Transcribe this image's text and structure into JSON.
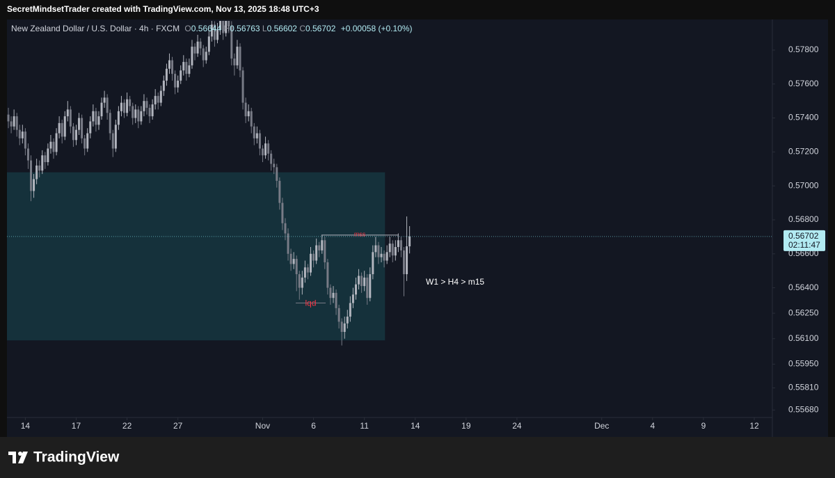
{
  "header": "SecretMindsetTrader created with TradingView.com, Nov 13, 2025 18:48 UTC+3",
  "footer": {
    "brand": "TradingView"
  },
  "chart_data": {
    "type": "candlestick",
    "symbol": "New Zealand Dollar / U.S. Dollar · 4h · FXCM",
    "ohlc_labels": [
      "O",
      "H",
      "L",
      "C"
    ],
    "change": "+0.00058 (+0.10%)",
    "countdown": "02:11:47",
    "colors": {
      "up": "#b2b5be",
      "down": "#787b86"
    },
    "candles": [
      [
        0.5742,
        0.5746,
        0.5734,
        0.5738
      ],
      [
        0.5738,
        0.5741,
        0.5731,
        0.5735
      ],
      [
        0.5735,
        0.5745,
        0.5733,
        0.5741
      ],
      [
        0.5741,
        0.5743,
        0.5729,
        0.5733
      ],
      [
        0.5733,
        0.5736,
        0.5724,
        0.5728
      ],
      [
        0.5728,
        0.5736,
        0.5725,
        0.5732
      ],
      [
        0.5732,
        0.5734,
        0.5718,
        0.5722
      ],
      [
        0.5722,
        0.5725,
        0.571,
        0.5715
      ],
      [
        0.5715,
        0.5718,
        0.5691,
        0.5697
      ],
      [
        0.5697,
        0.5707,
        0.5693,
        0.5704
      ],
      [
        0.5704,
        0.5716,
        0.5701,
        0.5712
      ],
      [
        0.5712,
        0.5715,
        0.5705,
        0.5709
      ],
      [
        0.5709,
        0.5721,
        0.5707,
        0.5718
      ],
      [
        0.5718,
        0.572,
        0.571,
        0.5714
      ],
      [
        0.5714,
        0.5725,
        0.5712,
        0.5722
      ],
      [
        0.5722,
        0.573,
        0.5719,
        0.5726
      ],
      [
        0.5726,
        0.5728,
        0.5716,
        0.572
      ],
      [
        0.572,
        0.5734,
        0.5718,
        0.5731
      ],
      [
        0.5731,
        0.5741,
        0.5728,
        0.5737
      ],
      [
        0.5737,
        0.5739,
        0.5725,
        0.5729
      ],
      [
        0.5729,
        0.5744,
        0.5727,
        0.5741
      ],
      [
        0.5741,
        0.575,
        0.5738,
        0.5745
      ],
      [
        0.5745,
        0.5747,
        0.5731,
        0.5735
      ],
      [
        0.5735,
        0.5737,
        0.5723,
        0.5727
      ],
      [
        0.5727,
        0.5736,
        0.5724,
        0.5733
      ],
      [
        0.5733,
        0.5743,
        0.573,
        0.574
      ],
      [
        0.574,
        0.5742,
        0.5725,
        0.5728
      ],
      [
        0.5728,
        0.573,
        0.5718,
        0.5722
      ],
      [
        0.5722,
        0.5734,
        0.572,
        0.5731
      ],
      [
        0.5731,
        0.5741,
        0.5728,
        0.5738
      ],
      [
        0.5738,
        0.5748,
        0.5735,
        0.5744
      ],
      [
        0.5744,
        0.5746,
        0.5732,
        0.5736
      ],
      [
        0.5736,
        0.5744,
        0.5733,
        0.5741
      ],
      [
        0.5741,
        0.5752,
        0.5739,
        0.5749
      ],
      [
        0.5749,
        0.5756,
        0.5746,
        0.5752
      ],
      [
        0.5752,
        0.5754,
        0.5739,
        0.5743
      ],
      [
        0.5743,
        0.5745,
        0.5727,
        0.5731
      ],
      [
        0.5731,
        0.5733,
        0.5717,
        0.5722
      ],
      [
        0.5722,
        0.5739,
        0.572,
        0.5736
      ],
      [
        0.5736,
        0.5747,
        0.5733,
        0.5744
      ],
      [
        0.5744,
        0.5753,
        0.5741,
        0.5749
      ],
      [
        0.5749,
        0.5751,
        0.574,
        0.5743
      ],
      [
        0.5743,
        0.5755,
        0.5741,
        0.5751
      ],
      [
        0.5751,
        0.5753,
        0.5744,
        0.5747
      ],
      [
        0.5747,
        0.5749,
        0.5736,
        0.574
      ],
      [
        0.574,
        0.5748,
        0.5737,
        0.5745
      ],
      [
        0.5745,
        0.5747,
        0.5734,
        0.5738
      ],
      [
        0.5738,
        0.5747,
        0.5736,
        0.5744
      ],
      [
        0.5744,
        0.5754,
        0.5741,
        0.575
      ],
      [
        0.575,
        0.5752,
        0.5742,
        0.5746
      ],
      [
        0.5746,
        0.5748,
        0.5737,
        0.5741
      ],
      [
        0.5741,
        0.5751,
        0.5739,
        0.5748
      ],
      [
        0.5748,
        0.5757,
        0.5745,
        0.5753
      ],
      [
        0.5753,
        0.5755,
        0.5745,
        0.5749
      ],
      [
        0.5749,
        0.5759,
        0.5747,
        0.5756
      ],
      [
        0.5756,
        0.5765,
        0.5753,
        0.5762
      ],
      [
        0.5762,
        0.5772,
        0.5759,
        0.5769
      ],
      [
        0.5769,
        0.5778,
        0.5766,
        0.5774
      ],
      [
        0.5774,
        0.5776,
        0.5762,
        0.5766
      ],
      [
        0.5766,
        0.5768,
        0.5754,
        0.5758
      ],
      [
        0.5758,
        0.5765,
        0.5755,
        0.5762
      ],
      [
        0.5762,
        0.5771,
        0.576,
        0.5768
      ],
      [
        0.5768,
        0.5777,
        0.5765,
        0.5773
      ],
      [
        0.5773,
        0.5775,
        0.5762,
        0.5766
      ],
      [
        0.5766,
        0.5775,
        0.5764,
        0.5771
      ],
      [
        0.5771,
        0.5786,
        0.5769,
        0.5782
      ],
      [
        0.5782,
        0.5784,
        0.5774,
        0.5778
      ],
      [
        0.5778,
        0.5789,
        0.5776,
        0.5785
      ],
      [
        0.5785,
        0.5787,
        0.5777,
        0.5781
      ],
      [
        0.5781,
        0.5783,
        0.577,
        0.5774
      ],
      [
        0.5774,
        0.5782,
        0.5772,
        0.5779
      ],
      [
        0.5779,
        0.5792,
        0.5777,
        0.5788
      ],
      [
        0.5788,
        0.5799,
        0.5785,
        0.5795
      ],
      [
        0.5795,
        0.5797,
        0.5782,
        0.5786
      ],
      [
        0.5786,
        0.5796,
        0.5784,
        0.5792
      ],
      [
        0.5792,
        0.5803,
        0.5789,
        0.5798
      ],
      [
        0.5798,
        0.58,
        0.5786,
        0.579
      ],
      [
        0.579,
        0.581,
        0.5788,
        0.5802
      ],
      [
        0.5802,
        0.5805,
        0.579,
        0.5794
      ],
      [
        0.5794,
        0.5797,
        0.5771,
        0.5775
      ],
      [
        0.5775,
        0.5778,
        0.5765,
        0.5771
      ],
      [
        0.5771,
        0.5786,
        0.5769,
        0.5782
      ],
      [
        0.5782,
        0.5784,
        0.5764,
        0.5768
      ],
      [
        0.5768,
        0.577,
        0.5745,
        0.5749
      ],
      [
        0.5749,
        0.5752,
        0.5737,
        0.5741
      ],
      [
        0.5741,
        0.5748,
        0.5738,
        0.5744
      ],
      [
        0.5744,
        0.5746,
        0.5731,
        0.5735
      ],
      [
        0.5735,
        0.5737,
        0.5724,
        0.5728
      ],
      [
        0.5728,
        0.5735,
        0.5725,
        0.5731
      ],
      [
        0.5731,
        0.5733,
        0.5718,
        0.5722
      ],
      [
        0.5722,
        0.5724,
        0.5714,
        0.5718
      ],
      [
        0.5718,
        0.5729,
        0.5716,
        0.5725
      ],
      [
        0.5725,
        0.5727,
        0.5715,
        0.5719
      ],
      [
        0.5719,
        0.5721,
        0.5709,
        0.5713
      ],
      [
        0.5713,
        0.5716,
        0.5707,
        0.5711
      ],
      [
        0.5711,
        0.5713,
        0.5699,
        0.5703
      ],
      [
        0.5703,
        0.5705,
        0.5686,
        0.569
      ],
      [
        0.569,
        0.5693,
        0.5674,
        0.5678
      ],
      [
        0.5678,
        0.5681,
        0.5668,
        0.5672
      ],
      [
        0.5672,
        0.5675,
        0.5656,
        0.566
      ],
      [
        0.566,
        0.5663,
        0.565,
        0.5654
      ],
      [
        0.5654,
        0.5661,
        0.5651,
        0.5657
      ],
      [
        0.5657,
        0.5659,
        0.5638,
        0.5648
      ],
      [
        0.5648,
        0.565,
        0.5633,
        0.564
      ],
      [
        0.564,
        0.565,
        0.5636,
        0.5646
      ],
      [
        0.5646,
        0.5656,
        0.5643,
        0.5652
      ],
      [
        0.5652,
        0.5654,
        0.5645,
        0.5649
      ],
      [
        0.5649,
        0.5664,
        0.5647,
        0.566
      ],
      [
        0.566,
        0.5662,
        0.5652,
        0.5656
      ],
      [
        0.5656,
        0.5669,
        0.5654,
        0.5665
      ],
      [
        0.5665,
        0.5667,
        0.5658,
        0.5662
      ],
      [
        0.5662,
        0.5671,
        0.566,
        0.5668
      ],
      [
        0.5668,
        0.567,
        0.5651,
        0.5655
      ],
      [
        0.5655,
        0.5657,
        0.5636,
        0.564
      ],
      [
        0.564,
        0.5642,
        0.563,
        0.5634
      ],
      [
        0.5634,
        0.5641,
        0.5631,
        0.5637
      ],
      [
        0.5637,
        0.5639,
        0.5624,
        0.5628
      ],
      [
        0.5628,
        0.563,
        0.5616,
        0.562
      ],
      [
        0.562,
        0.5622,
        0.5606,
        0.5614
      ],
      [
        0.5614,
        0.5623,
        0.561,
        0.5619
      ],
      [
        0.5619,
        0.5627,
        0.5616,
        0.5623
      ],
      [
        0.5623,
        0.5635,
        0.562,
        0.5631
      ],
      [
        0.5631,
        0.564,
        0.5628,
        0.5636
      ],
      [
        0.5636,
        0.5646,
        0.5633,
        0.5642
      ],
      [
        0.5642,
        0.5651,
        0.5639,
        0.5647
      ],
      [
        0.5647,
        0.5649,
        0.5637,
        0.5641
      ],
      [
        0.5641,
        0.565,
        0.5638,
        0.5646
      ],
      [
        0.5646,
        0.5648,
        0.563,
        0.5634
      ],
      [
        0.5634,
        0.5652,
        0.5632,
        0.5648
      ],
      [
        0.5648,
        0.5665,
        0.5645,
        0.5661
      ],
      [
        0.5661,
        0.567,
        0.5658,
        0.5665
      ],
      [
        0.5665,
        0.5667,
        0.5654,
        0.5658
      ],
      [
        0.5658,
        0.5664,
        0.5655,
        0.566
      ],
      [
        0.566,
        0.5662,
        0.5652,
        0.5656
      ],
      [
        0.5656,
        0.5665,
        0.5654,
        0.5661
      ],
      [
        0.5661,
        0.567,
        0.5658,
        0.5666
      ],
      [
        0.5666,
        0.5668,
        0.5655,
        0.5659
      ],
      [
        0.5659,
        0.5668,
        0.5656,
        0.5664
      ],
      [
        0.5664,
        0.5672,
        0.5661,
        0.5668
      ],
      [
        0.5668,
        0.567,
        0.5658,
        0.5662
      ],
      [
        0.5662,
        0.5664,
        0.5635,
        0.5648
      ],
      [
        0.5648,
        0.5682,
        0.5644,
        0.56644
      ],
      [
        0.56644,
        0.56763,
        0.56602,
        0.56702
      ]
    ],
    "ylim": [
      0.55636,
      0.57972
    ],
    "yticks": [
      {
        "value": 0.578,
        "label": "0.57800"
      },
      {
        "value": 0.576,
        "label": "0.57600"
      },
      {
        "value": 0.574,
        "label": "0.57400"
      },
      {
        "value": 0.572,
        "label": "0.57200"
      },
      {
        "value": 0.57,
        "label": "0.57000"
      },
      {
        "value": 0.568,
        "label": "0.56800"
      },
      {
        "value": 0.566,
        "label": "0.56600"
      },
      {
        "value": 0.564,
        "label": "0.56400"
      },
      {
        "value": 0.5625,
        "label": "0.56250"
      },
      {
        "value": 0.561,
        "label": "0.56100"
      },
      {
        "value": 0.5595,
        "label": "0.55950"
      },
      {
        "value": 0.5581,
        "label": "0.55810"
      },
      {
        "value": 0.5568,
        "label": "0.55680"
      }
    ],
    "xlim": [
      -0.5,
      270.4
    ],
    "xticks": [
      {
        "value": 6,
        "label": "14"
      },
      {
        "value": 24,
        "label": "17"
      },
      {
        "value": 42,
        "label": "22"
      },
      {
        "value": 60,
        "label": "27"
      },
      {
        "value": 90,
        "label": "Nov"
      },
      {
        "value": 108,
        "label": "6"
      },
      {
        "value": 126,
        "label": "11"
      },
      {
        "value": 144,
        "label": "14"
      },
      {
        "value": 162,
        "label": "19"
      },
      {
        "value": 180,
        "label": "24"
      },
      {
        "value": 210,
        "label": "Dec"
      },
      {
        "value": 228,
        "label": "4"
      },
      {
        "value": 246,
        "label": "9"
      },
      {
        "value": 264,
        "label": "12"
      }
    ],
    "zone": {
      "color": "#15313b",
      "x": [
        -0.5,
        133.3
      ],
      "top": 0.5708,
      "bottom": 0.5609
    },
    "levels": [
      {
        "label": "mss",
        "value": 0.5671,
        "x": [
          110.8,
          138
        ],
        "color": "#f23645"
      },
      {
        "label": "lqd",
        "value": 0.5631,
        "x": [
          101.7,
          112.3
        ],
        "color": "#f23645"
      }
    ],
    "annotation": "W1 > H4 > m15"
  }
}
